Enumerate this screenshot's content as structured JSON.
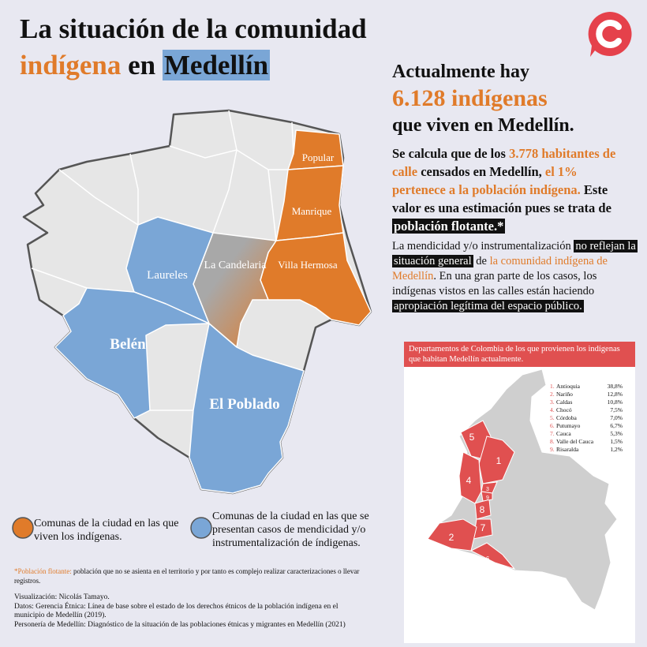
{
  "header": {
    "title_line1": "La situación de la comunidad",
    "title_word1": "indígena",
    "title_word2": "en",
    "title_word3": "Medellín"
  },
  "stats": {
    "line1": "Actualmente hay",
    "highlight": "6.128 indígenas",
    "line3": "que viven en Medellín."
  },
  "estimate": {
    "segments": [
      "Se calcula que de los ",
      "3.778 habitantes de calle",
      " censados en Medellín, ",
      "el 1% pertenece a la población indígena.",
      " Este valor es una estimación pues se trata de ",
      "población flotante.*"
    ]
  },
  "mendicidad": {
    "segments": [
      "La mendicidad y/o instrumentalización ",
      "no reflejan la situación general",
      " de ",
      "la comunidad indígena de Medellín",
      ". En una gran parte de los casos, los indígenas vistos en las calles están haciendo ",
      "apropiación legítima del espacio público."
    ]
  },
  "map": {
    "comunas": [
      "Popular",
      "Manrique",
      "Villa Hermosa",
      "La Candelaria",
      "Laureles",
      "Belén",
      "El Poblado"
    ]
  },
  "legend": {
    "orange": "Comunas de la ciudad en las que viven los indígenas.",
    "blue": "Comunas de la ciudad en las que se presentan casos de mendicidad y/o instrumentalización de índigenas."
  },
  "colombia": {
    "title": "Departamentos de Colombia de los que provienen los indígenas que habitan Medellín actualmente.",
    "ranking": [
      [
        "1.",
        "Antioquia",
        "38,8%"
      ],
      [
        "2.",
        "Nariño",
        "12,8%"
      ],
      [
        "3.",
        "Caldas",
        "10,8%"
      ],
      [
        "4.",
        "Chocó",
        "7,5%"
      ],
      [
        "5.",
        "Córdoba",
        "7,0%"
      ],
      [
        "6.",
        "Putumayo",
        "6,7%"
      ],
      [
        "7.",
        "Cauca",
        "5,3%"
      ],
      [
        "8.",
        "Valle del Cauca",
        "1,5%"
      ],
      [
        "9.",
        "Risaralda",
        "1,2%"
      ]
    ],
    "map_labels": [
      "1",
      "2",
      "3",
      "4",
      "5",
      "6",
      "7",
      "8",
      "9"
    ]
  },
  "footnote": {
    "term": "*Población flotante:",
    "text": " población que no se asienta en el territorio y por tanto es complejo realizar caracterizaciones o llevar registros."
  },
  "credits": [
    "Visualización: Nicolás Tamayo.",
    "Datos:  Gerencia Étnica: Línea de base sobre el estado de los derechos étnicos de la población indígena en el municipio de Medellín (2019).",
    "Personería de Medellín: Diagnóstico de la situación de las poblaciones étnicas y migrantes en Medellín (2021)"
  ]
}
